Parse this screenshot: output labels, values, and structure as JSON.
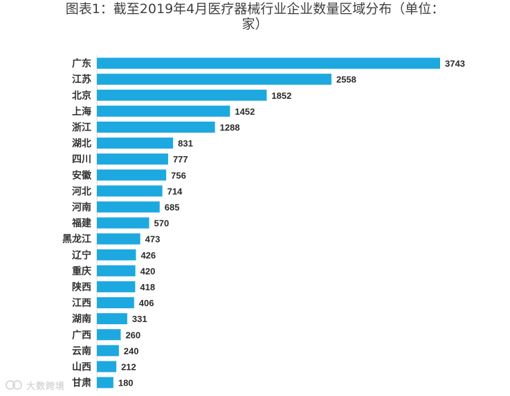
{
  "title_line1": "图表1：截至2019年4月医疗器械行业企业数量区域分布（单位：",
  "title_line2": "家）",
  "watermark_text": "大数跨境",
  "chart_data": {
    "type": "bar",
    "orientation": "horizontal",
    "title": "图表1：截至2019年4月医疗器械行业企业数量区域分布（单位：家）",
    "categories": [
      "广东",
      "江苏",
      "北京",
      "上海",
      "浙江",
      "湖北",
      "四川",
      "安徽",
      "河北",
      "河南",
      "福建",
      "黑龙江",
      "辽宁",
      "重庆",
      "陕西",
      "江西",
      "湖南",
      "广西",
      "云南",
      "山西",
      "甘肃"
    ],
    "values": [
      3743,
      2558,
      1852,
      1452,
      1288,
      831,
      777,
      756,
      714,
      685,
      570,
      473,
      426,
      420,
      418,
      406,
      331,
      260,
      240,
      212,
      180
    ],
    "bar_color": "#1ea8e0",
    "xlabel": "",
    "ylabel": "",
    "grid": false,
    "legend": "none",
    "data_labels": true
  }
}
